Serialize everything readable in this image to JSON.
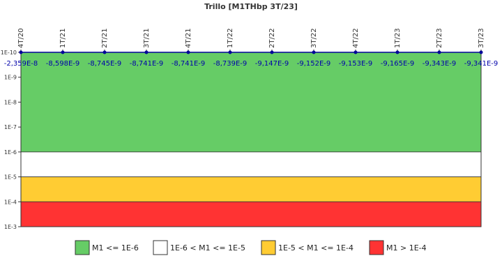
{
  "chart_data": {
    "type": "line",
    "title": "Trillo [M1THbp 3T/23]",
    "categories": [
      "4T/20",
      "1T/21",
      "2T/21",
      "3T/21",
      "4T/21",
      "1T/22",
      "2T/22",
      "3T/22",
      "4T/22",
      "1T/23",
      "2T/23",
      "3T/23"
    ],
    "series": [
      {
        "color": "#000099",
        "values": [
          -2.359e-08,
          -8.598e-09,
          -8.745e-09,
          -8.741e-09,
          -8.741e-09,
          -8.739e-09,
          -9.147e-09,
          -9.152e-09,
          -9.153e-09,
          -9.165e-09,
          -9.343e-09,
          -9.341e-09
        ],
        "value_labels": [
          "-2,359E-8",
          "-8,598E-9",
          "-8,745E-9",
          "-8,741E-9",
          "-8,741E-9",
          "-8,739E-9",
          "-9,147E-9",
          "-9,152E-9",
          "-9,153E-9",
          "-9,165E-9",
          "-9,343E-9",
          "-9,341E-9"
        ]
      }
    ],
    "log_scale": true,
    "y_reversed": true,
    "ylim": [
      1e-10,
      0.001
    ],
    "yticks": [
      {
        "value": 1e-10,
        "label": "1E-10"
      },
      {
        "value": 1e-09,
        "label": "1E-9"
      },
      {
        "value": 1e-08,
        "label": "1E-8"
      },
      {
        "value": 1e-07,
        "label": "1E-7"
      },
      {
        "value": 1e-06,
        "label": "1E-6"
      },
      {
        "value": 1e-05,
        "label": "1E-5"
      },
      {
        "value": 0.0001,
        "label": "1E-4"
      },
      {
        "value": 0.001,
        "label": "1E-3"
      }
    ],
    "bands": [
      {
        "name": "M1 <= 1E-6",
        "color": "#66cc66",
        "from": 1e-10,
        "to": 1e-06
      },
      {
        "name": "1E-6 < M1 <= 1E-5",
        "color": "#ffffff",
        "from": 1e-06,
        "to": 1e-05
      },
      {
        "name": "1E-5 < M1 <= 1E-4",
        "color": "#ffcc33",
        "from": 1e-05,
        "to": 0.0001
      },
      {
        "name": "M1 > 1E-4",
        "color": "#ff3333",
        "from": 0.0001,
        "to": 0.001
      }
    ]
  }
}
